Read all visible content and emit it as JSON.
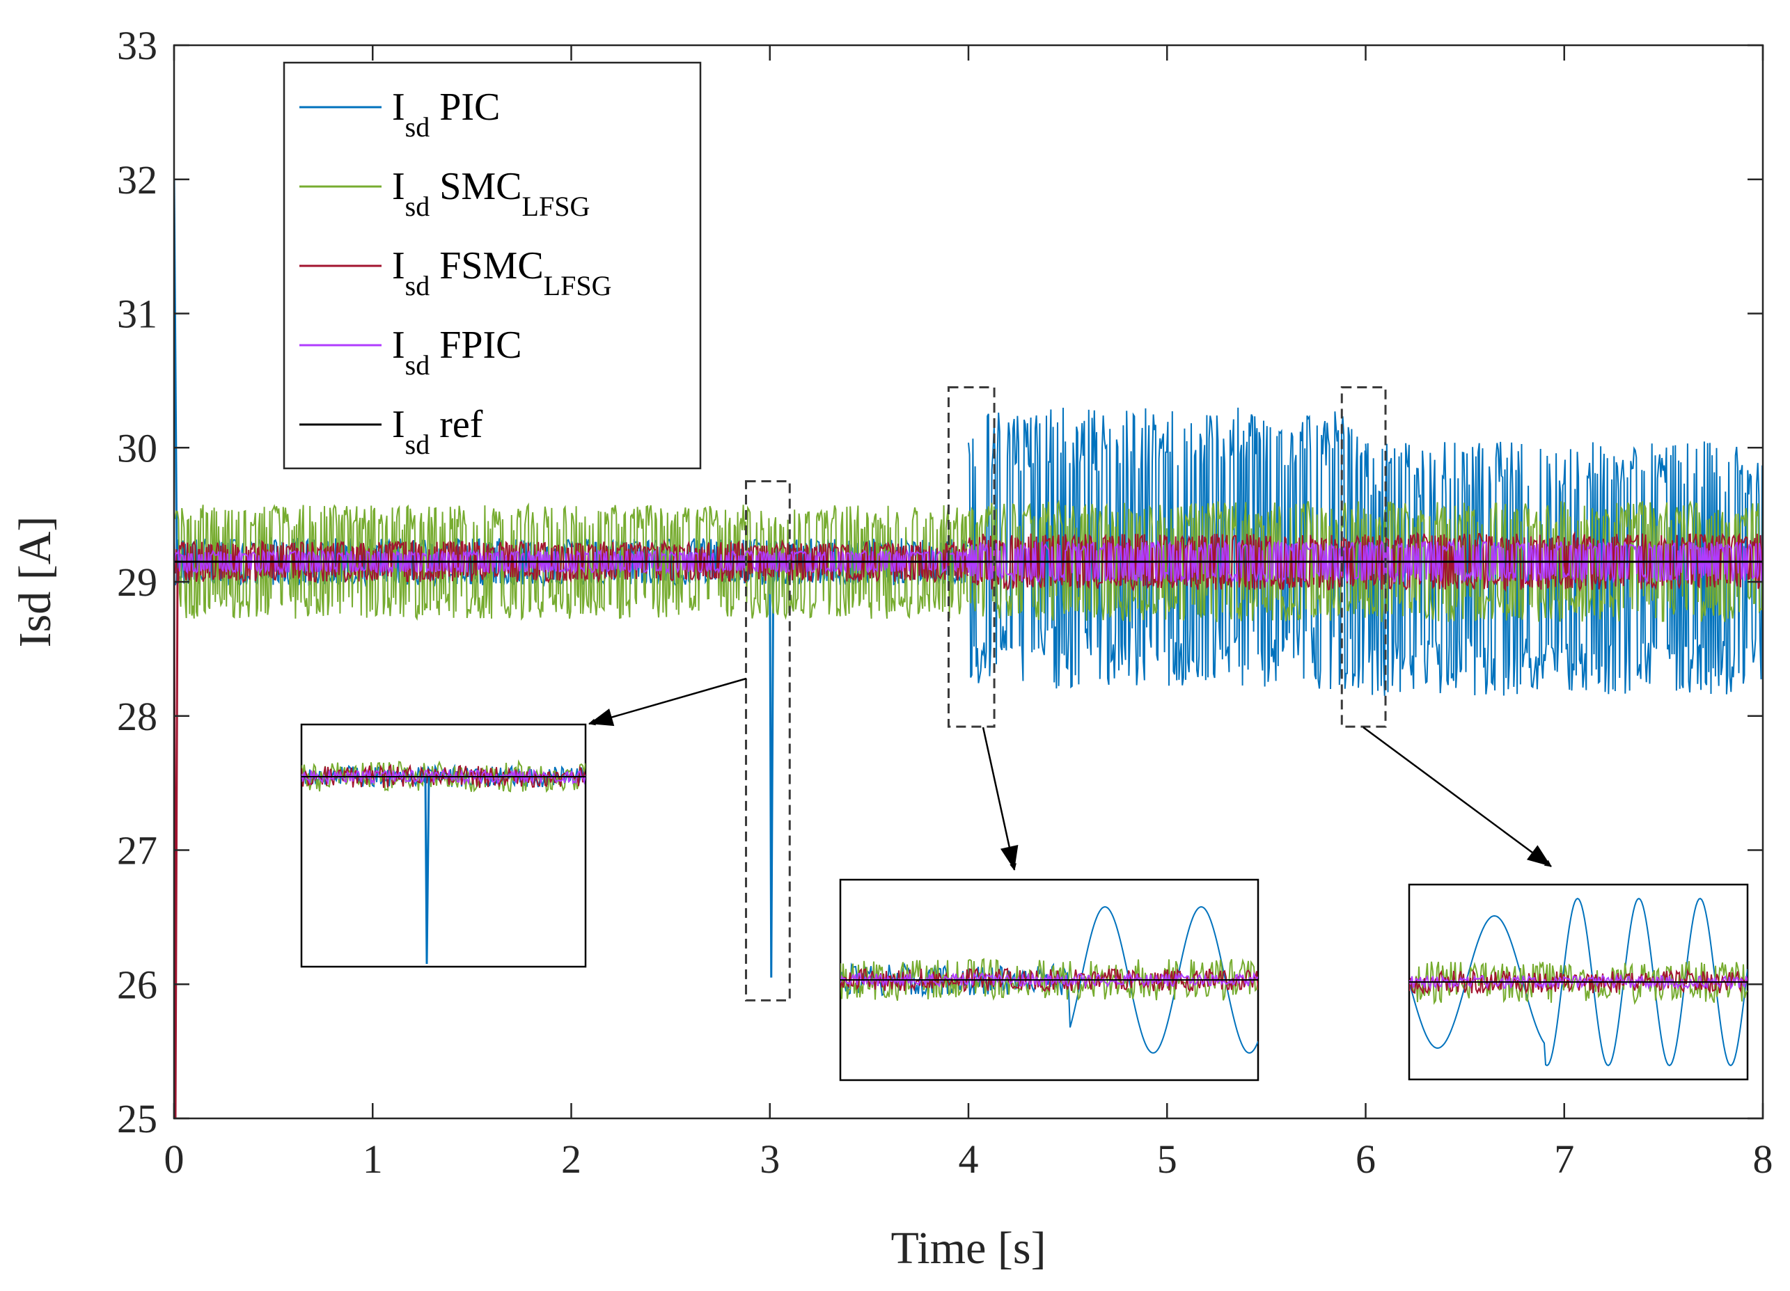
{
  "chart_data": {
    "type": "line",
    "xlabel": "Time [s]",
    "ylabel": "Isd [A]",
    "xlim": [
      0,
      8
    ],
    "ylim": [
      25,
      33
    ],
    "x_ticks": [
      "0",
      "1",
      "2",
      "3",
      "4",
      "5",
      "6",
      "7",
      "8"
    ],
    "y_ticks": [
      "25",
      "26",
      "27",
      "28",
      "29",
      "30",
      "31",
      "32",
      "33"
    ],
    "grid": false,
    "legend_position": "top-left",
    "series": [
      {
        "name_main": "I",
        "name_sub": "sd",
        "name_rest": " PIC",
        "name_rest_sub": "",
        "color": "#0072BD",
        "segments": [
          {
            "x0": 0,
            "x1": 4,
            "center": 29.15,
            "band": 0.35
          },
          {
            "x0": 4,
            "x1": 6,
            "center": 29.25,
            "band": 2.1
          },
          {
            "x0": 6,
            "x1": 8,
            "center": 29.1,
            "band": 1.9
          }
        ],
        "events": [
          {
            "x": 0.0,
            "y_start": 32.0,
            "y_end": 29.15
          },
          {
            "x": 3.0,
            "y_min": 26.05
          }
        ]
      },
      {
        "name_main": "I",
        "name_sub": "sd",
        "name_rest": " SMC",
        "name_rest_sub": "LFSG",
        "color": "#77AC30",
        "segments": [
          {
            "x0": 0,
            "x1": 4,
            "center": 29.15,
            "band": 0.85
          },
          {
            "x0": 4,
            "x1": 8,
            "center": 29.15,
            "band": 0.9
          }
        ],
        "events": []
      },
      {
        "name_main": "I",
        "name_sub": "sd",
        "name_rest": " FSMC",
        "name_rest_sub": "LFSG",
        "color": "#A2142F",
        "segments": [
          {
            "x0": 0,
            "x1": 4,
            "center": 29.15,
            "band": 0.3
          },
          {
            "x0": 4,
            "x1": 8,
            "center": 29.15,
            "band": 0.42
          }
        ],
        "events": [
          {
            "x": 0.0,
            "y_min": 25.0
          }
        ]
      },
      {
        "name_main": "I",
        "name_sub": "sd",
        "name_rest": " FPIC",
        "name_rest_sub": "",
        "color": "#B03CFF",
        "segments": [
          {
            "x0": 0,
            "x1": 4,
            "center": 29.15,
            "band": 0.16
          },
          {
            "x0": 4,
            "x1": 8,
            "center": 29.15,
            "band": 0.3
          }
        ],
        "events": []
      },
      {
        "name_main": "I",
        "name_sub": "sd",
        "name_rest": " ref",
        "name_rest_sub": "",
        "color": "#000000",
        "segments": [
          {
            "x0": 0,
            "x1": 8,
            "center": 29.15,
            "band": 0
          }
        ],
        "events": []
      }
    ],
    "zoom_regions": [
      {
        "x_range": [
          2.88,
          3.1
        ],
        "y_range": [
          25.88,
          29.75
        ]
      },
      {
        "x_range": [
          3.9,
          4.13
        ],
        "y_range": [
          27.92,
          30.45
        ]
      },
      {
        "x_range": [
          5.88,
          6.1
        ],
        "y_range": [
          27.92,
          30.45
        ]
      }
    ]
  }
}
